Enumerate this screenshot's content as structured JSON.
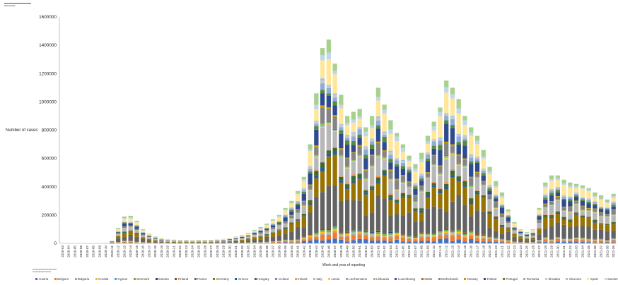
{
  "top_tag": "Data-ECDC",
  "chart_data": {
    "type": "bar",
    "stacked": true,
    "ylabel": "Number of cases",
    "xlabel": "Week and year of reporting",
    "ylim": [
      0,
      1600000
    ],
    "yticks": [
      0,
      200000,
      400000,
      600000,
      800000,
      1000000,
      1200000,
      1400000,
      1600000
    ],
    "ytick_labels": [
      "0",
      "200000",
      "400000",
      "600000",
      "800000",
      "1000000",
      "1200000",
      "1400000",
      "1600000"
    ],
    "grid": false,
    "legend_position": "bottom",
    "source_note": "Countries/territories",
    "categories": [
      "2020-03",
      "2020-04",
      "2020-05",
      "2020-06",
      "2020-07",
      "2020-08",
      "2020-09",
      "2020-10",
      "2020-11",
      "2020-12",
      "2020-13",
      "2020-14",
      "2020-15",
      "2020-16",
      "2020-17",
      "2020-18",
      "2020-19",
      "2020-20",
      "2020-21",
      "2020-22",
      "2020-23",
      "2020-24",
      "2020-25",
      "2020-26",
      "2020-27",
      "2020-28",
      "2020-29",
      "2020-30",
      "2020-31",
      "2020-32",
      "2020-33",
      "2020-34",
      "2020-35",
      "2020-36",
      "2020-37",
      "2020-38",
      "2020-39",
      "2020-40",
      "2020-41",
      "2020-42",
      "2020-43",
      "2020-44",
      "2020-45",
      "2020-46",
      "2020-47",
      "2020-48",
      "2020-49",
      "2020-50",
      "2020-51",
      "2020-52",
      "2020-53",
      "2021-01",
      "2021-02",
      "2021-03",
      "2021-04",
      "2021-05",
      "2021-06",
      "2021-07",
      "2021-08",
      "2021-09",
      "2021-10",
      "2021-11",
      "2021-12",
      "2021-13",
      "2021-14",
      "2021-15",
      "2021-16",
      "2021-17",
      "2021-18",
      "2021-19",
      "2021-20",
      "2021-21",
      "2021-22",
      "2021-23",
      "2021-24",
      "2021-25",
      "2021-26",
      "2021-27",
      "2021-28",
      "2021-29",
      "2021-30",
      "2021-31",
      "2021-32",
      "2021-33",
      "2021-34",
      "2021-35",
      "2021-36",
      "2021-37",
      "2021-38",
      "2021-39"
    ],
    "totals": [
      0,
      0,
      0,
      0,
      0,
      0,
      0,
      3000,
      20000,
      110000,
      190000,
      195000,
      160000,
      100000,
      70000,
      50000,
      38000,
      30000,
      26000,
      24000,
      22000,
      22000,
      24000,
      24000,
      25000,
      28000,
      32000,
      38000,
      48000,
      60000,
      75000,
      95000,
      115000,
      140000,
      170000,
      200000,
      250000,
      300000,
      370000,
      470000,
      700000,
      1060000,
      1380000,
      1440000,
      1270000,
      1050000,
      900000,
      930000,
      950000,
      820000,
      900000,
      1100000,
      980000,
      870000,
      780000,
      700000,
      620000,
      560000,
      640000,
      760000,
      860000,
      960000,
      1150000,
      1100000,
      1020000,
      900000,
      820000,
      760000,
      660000,
      540000,
      440000,
      360000,
      240000,
      150000,
      100000,
      80000,
      100000,
      250000,
      430000,
      480000,
      480000,
      450000,
      430000,
      420000,
      410000,
      390000,
      360000,
      340000,
      310000,
      350000
    ],
    "series": [
      {
        "name": "Austria",
        "color": "#4472c4",
        "share": 0.025
      },
      {
        "name": "Belgium",
        "color": "#ed7d31",
        "share": 0.03
      },
      {
        "name": "Bulgaria",
        "color": "#a5a5a5",
        "share": 0.01
      },
      {
        "name": "Croatia",
        "color": "#ffc000",
        "share": 0.01
      },
      {
        "name": "Cyprus",
        "color": "#5b9bd5",
        "share": 0.003
      },
      {
        "name": "Denmark",
        "color": "#70ad47",
        "share": 0.01
      },
      {
        "name": "Estonia",
        "color": "#264478",
        "share": 0.005
      },
      {
        "name": "Finland",
        "color": "#9e480e",
        "share": 0.004
      },
      {
        "name": "France",
        "color": "#636363",
        "share": 0.2
      },
      {
        "name": "Germany",
        "color": "#997300",
        "share": 0.14
      },
      {
        "name": "Greece",
        "color": "#255e91",
        "share": 0.015
      },
      {
        "name": "Hungary",
        "color": "#43682b",
        "share": 0.025
      },
      {
        "name": "Iceland",
        "color": "#698ed0",
        "share": 0.002
      },
      {
        "name": "Ireland",
        "color": "#f1975a",
        "share": 0.01
      },
      {
        "name": "Italy",
        "color": "#b7b7b7",
        "share": 0.12
      },
      {
        "name": "Latvia",
        "color": "#ffcd33",
        "share": 0.005
      },
      {
        "name": "Liechtenstein",
        "color": "#7cafdd",
        "share": 0.002
      },
      {
        "name": "Lithuania",
        "color": "#8cc168",
        "share": 0.01
      },
      {
        "name": "Luxembourg",
        "color": "#335aa1",
        "share": 0.003
      },
      {
        "name": "Malta",
        "color": "#d26012",
        "share": 0.002
      },
      {
        "name": "Netherlands",
        "color": "#848484",
        "share": 0.06
      },
      {
        "name": "Norway",
        "color": "#cc9a00",
        "share": 0.01
      },
      {
        "name": "Poland",
        "color": "#2f4b8f",
        "share": 0.09
      },
      {
        "name": "Portugal",
        "color": "#5a8a38",
        "share": 0.03
      },
      {
        "name": "Romania",
        "color": "#8faadc",
        "share": 0.03
      },
      {
        "name": "Slovakia",
        "color": "#c9c9c9",
        "share": 0.015
      },
      {
        "name": "Slovenia",
        "color": "#9dc3e6",
        "share": 0.008
      },
      {
        "name": "Spain",
        "color": "#ffe699",
        "share": 0.12
      },
      {
        "name": "Sweden",
        "color": "#bdd7ee",
        "share": 0.03
      },
      {
        "name": "Czechia",
        "color": "#a9d18e",
        "share": 0.061
      }
    ]
  }
}
